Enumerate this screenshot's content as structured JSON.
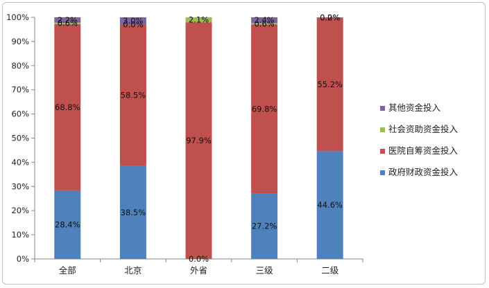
{
  "chart_data": {
    "type": "bar",
    "stacked": true,
    "percent": true,
    "categories": [
      "全部",
      "北京",
      "外省",
      "三级",
      "二级"
    ],
    "series": [
      {
        "name": "政府财政资金投入",
        "color": "#4f81bd",
        "values": [
          28.4,
          38.5,
          0.0,
          27.2,
          44.6
        ],
        "labels": [
          "28.4%",
          "38.5%",
          "0.0%",
          "27.2%",
          "44.6%"
        ]
      },
      {
        "name": "医院自筹资金投入",
        "color": "#c0504d",
        "values": [
          68.8,
          58.5,
          97.9,
          69.8,
          55.2
        ],
        "labels": [
          "68.8%",
          "58.5%",
          "97.9%",
          "69.8%",
          "55.2%"
        ]
      },
      {
        "name": "社会资助资金投入",
        "color": "#9bbb59",
        "values": [
          0.6,
          0.0,
          2.1,
          0.6,
          0.0
        ],
        "labels": [
          "0.6%",
          "0.0%",
          "2.1%",
          "0.6%",
          "0.0%"
        ]
      },
      {
        "name": "其他资金投入",
        "color": "#8064a2",
        "values": [
          2.2,
          3.0,
          0.0,
          2.4,
          0.2
        ],
        "labels": [
          "2.2%",
          "3.0%",
          "",
          "2.4%",
          "0.2%"
        ]
      }
    ],
    "ylim": [
      0,
      100
    ],
    "yticks": [
      "0%",
      "10%",
      "20%",
      "30%",
      "40%",
      "50%",
      "60%",
      "70%",
      "80%",
      "90%",
      "100%"
    ],
    "legend_position": "right",
    "grid": false
  }
}
